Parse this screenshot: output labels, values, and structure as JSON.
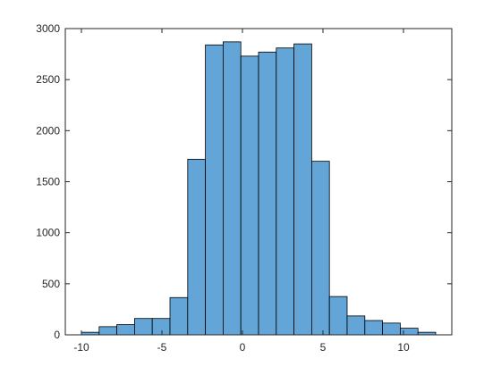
{
  "chart_data": {
    "type": "histogram",
    "bins": [
      -10,
      -8.9,
      -7.8,
      -6.7,
      -5.6,
      -4.5,
      -3.4,
      -2.3,
      -1.2,
      -0.1,
      1,
      2.1,
      3.2,
      4.3,
      5.4,
      6.5,
      7.6,
      8.7,
      9.8,
      10.9,
      12
    ],
    "counts": [
      25,
      80,
      100,
      160,
      160,
      365,
      1720,
      2840,
      2870,
      2730,
      2770,
      2810,
      2850,
      1700,
      375,
      185,
      140,
      115,
      65,
      25
    ],
    "color": "#62a5d6",
    "xlim": [
      -11,
      13
    ],
    "xticks": [
      -10,
      -5,
      0,
      5,
      10
    ],
    "ylim": [
      0,
      3000
    ],
    "yticks": [
      0,
      500,
      1000,
      1500,
      2000,
      2500,
      3000
    ]
  }
}
